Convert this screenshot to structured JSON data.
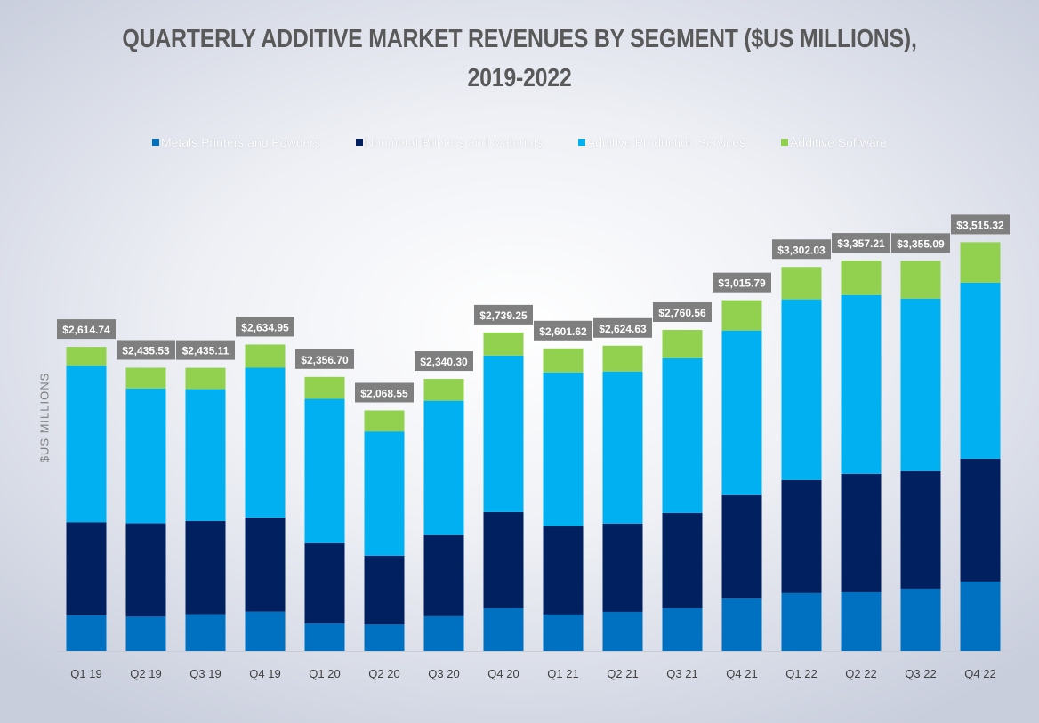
{
  "chart_data": {
    "type": "bar",
    "stacked": true,
    "title": "QUARTERLY ADDITIVE MARKET REVENUES BY SEGMENT ($US MILLIONS), 2019-2022",
    "title_lines": [
      "QUARTERLY ADDITIVE MARKET REVENUES BY SEGMENT ($US MILLIONS),",
      "2019-2022"
    ],
    "ylabel": "$US MILLIONS",
    "xlabel": "",
    "ylim": [
      0,
      4000
    ],
    "grid": false,
    "legend_position": "top",
    "categories": [
      "Q1 19",
      "Q2 19",
      "Q3 19",
      "Q4 19",
      "Q1 20",
      "Q2 20",
      "Q3 20",
      "Q4 20",
      "Q1 21",
      "Q2 21",
      "Q3 21",
      "Q4 21",
      "Q1 22",
      "Q2 22",
      "Q3 22",
      "Q4 22"
    ],
    "series": [
      {
        "name": "Metals Printers and Powders",
        "color": "#0070c0",
        "values": [
          306,
          296,
          316,
          339,
          237,
          227,
          299,
          367,
          314,
          337,
          367,
          452,
          498,
          505,
          536,
          597
        ]
      },
      {
        "name": "Nonmetal Printers and Materials",
        "color": "#002060",
        "values": [
          801,
          801,
          801,
          809,
          689,
          592,
          697,
          827,
          758,
          758,
          819,
          888,
          972,
          1018,
          1010,
          1056
        ]
      },
      {
        "name": "Additive Production Services",
        "color": "#00b0f0",
        "values": [
          1347,
          1161,
          1135,
          1288,
          1242,
          1069,
          1156,
          1347,
          1324,
          1309,
          1332,
          1416,
          1554,
          1538,
          1485,
          1515
        ]
      },
      {
        "name": "Additive Software",
        "color": "#92d050",
        "values": [
          161,
          178,
          183,
          199,
          189,
          181,
          188,
          198,
          206,
          221,
          243,
          260,
          278,
          296,
          324,
          347
        ]
      }
    ],
    "totals": [
      "$2,614.74",
      "$2,435.53",
      "$2,435.11",
      "$2,634.95",
      "$2,356.70",
      "$2,068.55",
      "$2,340.30",
      "$2,739.25",
      "$2,601.62",
      "$2,624.63",
      "$2,760.56",
      "$3,015.79",
      "$3,302.03",
      "$3,357.21",
      "$3,355.09",
      "$3,515.32"
    ],
    "total_label_color": "#7f7f7f"
  }
}
